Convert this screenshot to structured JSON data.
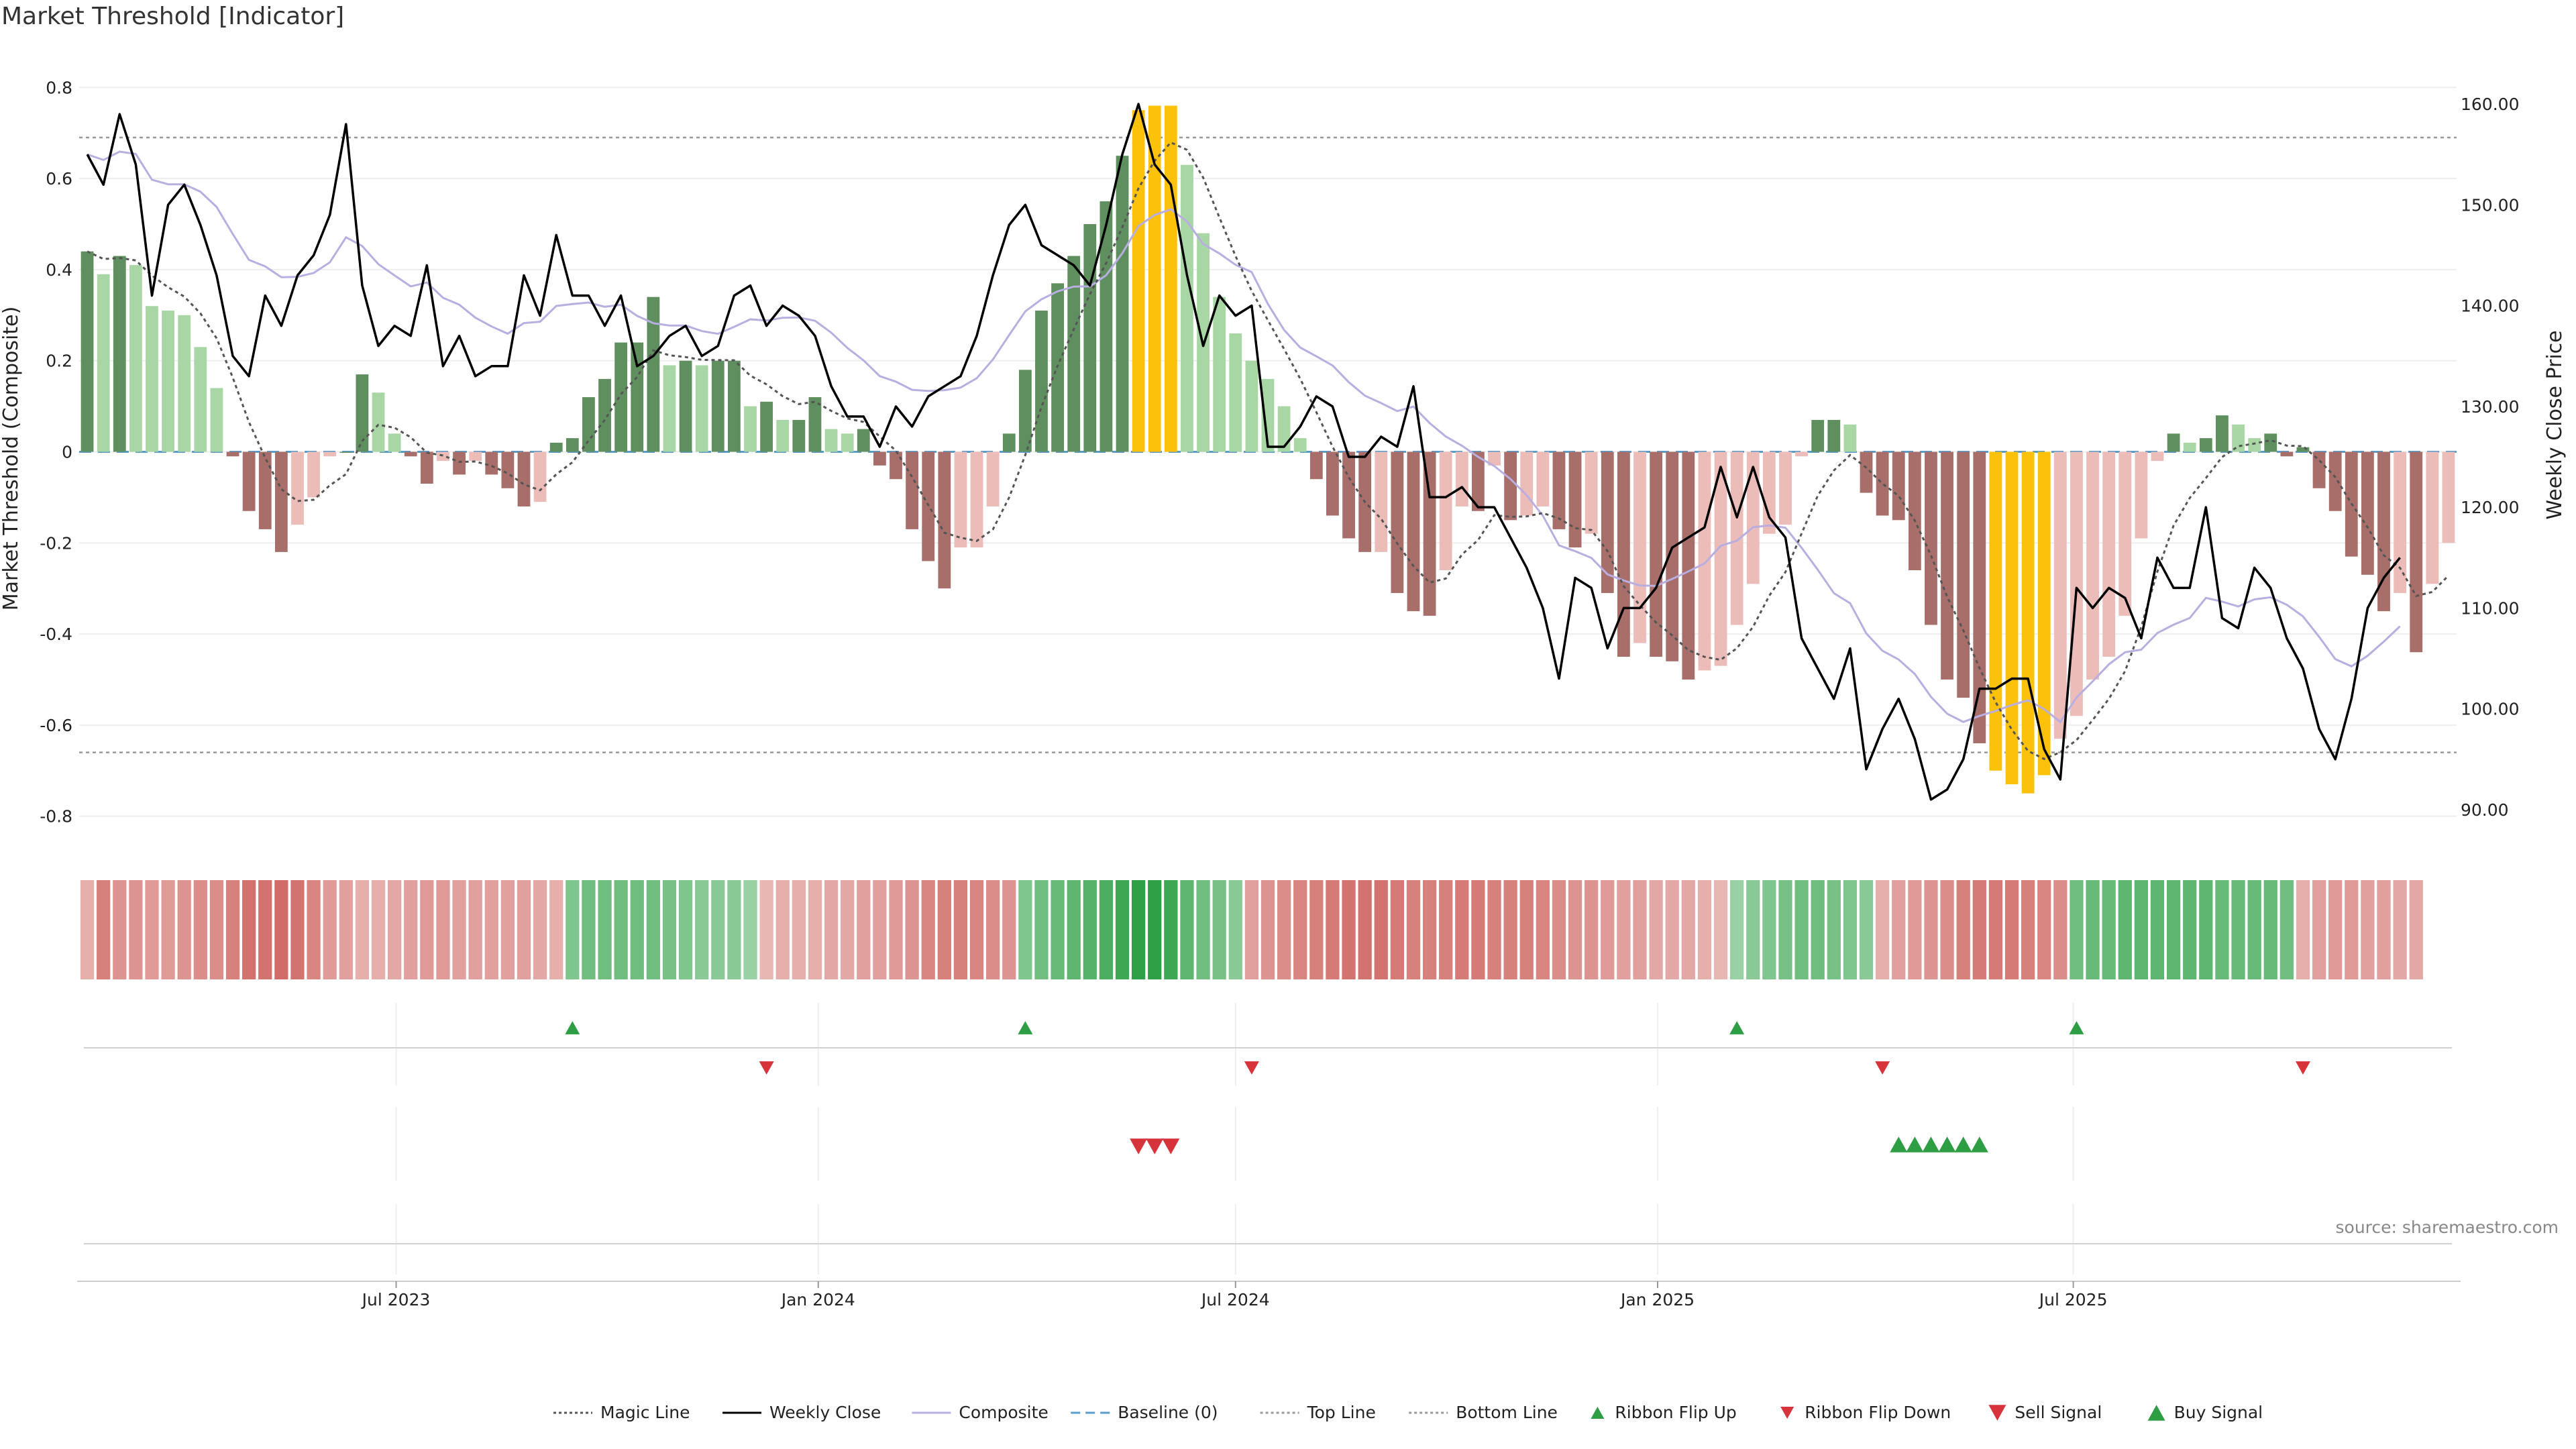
{
  "title": "Market Threshold [Indicator]",
  "source": "source: sharemaestro.com",
  "colors": {
    "magic": "#555555",
    "close": "#000000",
    "composite": "#b9aee0",
    "baseline": "#5b9bc8",
    "top_line": "#999999",
    "bottom_line": "#999999",
    "bar_strong_pos": "#5f8f5f",
    "bar_weak_pos": "#a8d6a4",
    "bar_strong_neg": "#a86e6a",
    "bar_weak_neg": "#ebbcb8",
    "bar_extreme": "#fcc10a",
    "flip_up": "#2e9e44",
    "flip_down": "#d6333a",
    "sell": "#d6333a",
    "buy": "#2e9e44"
  },
  "chart_data": {
    "type": "bar",
    "left_axis": {
      "label": "Market Threshold (Composite)",
      "range": [
        -0.83,
        0.83
      ],
      "ticks": [
        "0.8",
        "0.6",
        "0.4",
        "0.2",
        "0",
        "-0.2",
        "-0.4",
        "-0.6",
        "-0.8"
      ]
    },
    "right_axis": {
      "label": "Weekly Close Price",
      "range": [
        88,
        163
      ],
      "ticks": [
        "160.00",
        "150.00",
        "140.00",
        "130.00",
        "120.00",
        "110.00",
        "100.00",
        "90.00"
      ]
    },
    "x_labels": [
      "Jul 2023",
      "Jan 2024",
      "Jul 2024",
      "Jan 2025",
      "Jul 2025"
    ],
    "x_label_weeks": [
      19.6,
      45.7,
      71.5,
      97.6,
      123.3
    ],
    "top_line": 0.69,
    "bottom_line": -0.66,
    "composite": [
      0.44,
      0.39,
      0.43,
      0.41,
      0.32,
      0.31,
      0.3,
      0.23,
      0.14,
      -0.01,
      -0.13,
      -0.17,
      -0.22,
      -0.16,
      -0.1,
      -0.01,
      0.0,
      0.17,
      0.13,
      0.04,
      -0.01,
      -0.07,
      -0.02,
      -0.05,
      -0.02,
      -0.05,
      -0.08,
      -0.12,
      -0.11,
      0.02,
      0.03,
      0.12,
      0.16,
      0.24,
      0.24,
      0.34,
      0.19,
      0.2,
      0.19,
      0.2,
      0.2,
      0.1,
      0.11,
      0.07,
      0.07,
      0.12,
      0.05,
      0.04,
      0.05,
      -0.03,
      -0.06,
      -0.17,
      -0.24,
      -0.3,
      -0.21,
      -0.21,
      -0.12,
      0.04,
      0.18,
      0.31,
      0.37,
      0.43,
      0.5,
      0.55,
      0.65,
      0.75,
      0.76,
      0.76,
      0.63,
      0.48,
      0.34,
      0.26,
      0.2,
      0.16,
      0.1,
      0.03,
      -0.06,
      -0.14,
      -0.19,
      -0.22,
      -0.22,
      -0.31,
      -0.35,
      -0.36,
      -0.26,
      -0.12,
      -0.13,
      -0.03,
      -0.15,
      -0.14,
      -0.12,
      -0.17,
      -0.21,
      -0.18,
      -0.31,
      -0.45,
      -0.42,
      -0.45,
      -0.46,
      -0.5,
      -0.48,
      -0.47,
      -0.38,
      -0.29,
      -0.18,
      -0.16,
      -0.01,
      0.07,
      0.07,
      0.06,
      -0.09,
      -0.14,
      -0.15,
      -0.26,
      -0.38,
      -0.5,
      -0.54,
      -0.64,
      -0.7,
      -0.73,
      -0.75,
      -0.71,
      -0.63,
      -0.58,
      -0.5,
      -0.45,
      -0.36,
      -0.19,
      -0.02,
      0.04,
      0.02,
      0.03,
      0.08,
      0.06,
      0.03,
      0.04,
      -0.01,
      0.01,
      -0.08,
      -0.13,
      -0.23,
      -0.27,
      -0.35,
      -0.31,
      -0.44,
      -0.29,
      -0.2
    ],
    "weekly_close": [
      155,
      152,
      159,
      154,
      141,
      150,
      152,
      148,
      143,
      135,
      133,
      141,
      138,
      143,
      145,
      149,
      158,
      142,
      136,
      138,
      137,
      144,
      134,
      137,
      133,
      134,
      134,
      143,
      139,
      147,
      141,
      141,
      138,
      141,
      134,
      135,
      137,
      138,
      135,
      136,
      141,
      142,
      138,
      140,
      139,
      137,
      132,
      129,
      129,
      126,
      130,
      128,
      131,
      132,
      133,
      137,
      143,
      148,
      150,
      146,
      145,
      144,
      142,
      148,
      155,
      160,
      154,
      152,
      143,
      136,
      141,
      139,
      140,
      126,
      126,
      128,
      131,
      130,
      125,
      125,
      127,
      126,
      132,
      121,
      121,
      122,
      120,
      120,
      117,
      114,
      110,
      103,
      113,
      112,
      106,
      110,
      110,
      112,
      116,
      117,
      118,
      124,
      119,
      124,
      119,
      117,
      107,
      104,
      101,
      106,
      94,
      98,
      101,
      97,
      91,
      92,
      95,
      102,
      102,
      103,
      103,
      96,
      93,
      112,
      110,
      112,
      111,
      107,
      115,
      112,
      112,
      120,
      109,
      108,
      114,
      112,
      107,
      104,
      98,
      95,
      101,
      110,
      113,
      115
    ]
  },
  "ribbon": [
    {
      "sign": "neg",
      "level": 0.35
    },
    {
      "sign": "neg",
      "level": 0.7
    },
    {
      "sign": "neg",
      "level": 0.55
    },
    {
      "sign": "neg",
      "level": 0.55
    },
    {
      "sign": "neg",
      "level": 0.5
    },
    {
      "sign": "neg",
      "level": 0.5
    },
    {
      "sign": "neg",
      "level": 0.55
    },
    {
      "sign": "neg",
      "level": 0.6
    },
    {
      "sign": "neg",
      "level": 0.6
    },
    {
      "sign": "neg",
      "level": 0.7
    },
    {
      "sign": "neg",
      "level": 0.8
    },
    {
      "sign": "neg",
      "level": 0.8
    },
    {
      "sign": "neg",
      "level": 0.85
    },
    {
      "sign": "neg",
      "level": 0.8
    },
    {
      "sign": "neg",
      "level": 0.65
    },
    {
      "sign": "neg",
      "level": 0.5
    },
    {
      "sign": "neg",
      "level": 0.45
    },
    {
      "sign": "neg",
      "level": 0.35
    },
    {
      "sign": "neg",
      "level": 0.35
    },
    {
      "sign": "neg",
      "level": 0.4
    },
    {
      "sign": "neg",
      "level": 0.45
    },
    {
      "sign": "neg",
      "level": 0.5
    },
    {
      "sign": "neg",
      "level": 0.5
    },
    {
      "sign": "neg",
      "level": 0.45
    },
    {
      "sign": "neg",
      "level": 0.45
    },
    {
      "sign": "neg",
      "level": 0.45
    },
    {
      "sign": "neg",
      "level": 0.45
    },
    {
      "sign": "neg",
      "level": 0.45
    },
    {
      "sign": "neg",
      "level": 0.4
    },
    {
      "sign": "neg",
      "level": 0.35
    },
    {
      "sign": "pos",
      "level": 0.45
    },
    {
      "sign": "pos",
      "level": 0.55
    },
    {
      "sign": "pos",
      "level": 0.55
    },
    {
      "sign": "pos",
      "level": 0.55
    },
    {
      "sign": "pos",
      "level": 0.55
    },
    {
      "sign": "pos",
      "level": 0.55
    },
    {
      "sign": "pos",
      "level": 0.5
    },
    {
      "sign": "pos",
      "level": 0.45
    },
    {
      "sign": "pos",
      "level": 0.4
    },
    {
      "sign": "pos",
      "level": 0.4
    },
    {
      "sign": "pos",
      "level": 0.4
    },
    {
      "sign": "pos",
      "level": 0.3
    },
    {
      "sign": "neg",
      "level": 0.3
    },
    {
      "sign": "neg",
      "level": 0.35
    },
    {
      "sign": "neg",
      "level": 0.35
    },
    {
      "sign": "neg",
      "level": 0.35
    },
    {
      "sign": "neg",
      "level": 0.4
    },
    {
      "sign": "neg",
      "level": 0.4
    },
    {
      "sign": "neg",
      "level": 0.45
    },
    {
      "sign": "neg",
      "level": 0.45
    },
    {
      "sign": "neg",
      "level": 0.5
    },
    {
      "sign": "neg",
      "level": 0.55
    },
    {
      "sign": "neg",
      "level": 0.65
    },
    {
      "sign": "neg",
      "level": 0.7
    },
    {
      "sign": "neg",
      "level": 0.7
    },
    {
      "sign": "neg",
      "level": 0.65
    },
    {
      "sign": "neg",
      "level": 0.6
    },
    {
      "sign": "neg",
      "level": 0.55
    },
    {
      "sign": "pos",
      "level": 0.45
    },
    {
      "sign": "pos",
      "level": 0.55
    },
    {
      "sign": "pos",
      "level": 0.6
    },
    {
      "sign": "pos",
      "level": 0.65
    },
    {
      "sign": "pos",
      "level": 0.7
    },
    {
      "sign": "pos",
      "level": 0.75
    },
    {
      "sign": "pos",
      "level": 0.85
    },
    {
      "sign": "pos",
      "level": 0.95
    },
    {
      "sign": "pos",
      "level": 0.95
    },
    {
      "sign": "pos",
      "level": 0.85
    },
    {
      "sign": "pos",
      "level": 0.65
    },
    {
      "sign": "pos",
      "level": 0.55
    },
    {
      "sign": "pos",
      "level": 0.5
    },
    {
      "sign": "pos",
      "level": 0.4
    },
    {
      "sign": "neg",
      "level": 0.45
    },
    {
      "sign": "neg",
      "level": 0.55
    },
    {
      "sign": "neg",
      "level": 0.6
    },
    {
      "sign": "neg",
      "level": 0.65
    },
    {
      "sign": "neg",
      "level": 0.7
    },
    {
      "sign": "neg",
      "level": 0.75
    },
    {
      "sign": "neg",
      "level": 0.8
    },
    {
      "sign": "neg",
      "level": 0.8
    },
    {
      "sign": "neg",
      "level": 0.8
    },
    {
      "sign": "neg",
      "level": 0.75
    },
    {
      "sign": "neg",
      "level": 0.7
    },
    {
      "sign": "neg",
      "level": 0.7
    },
    {
      "sign": "neg",
      "level": 0.7
    },
    {
      "sign": "neg",
      "level": 0.75
    },
    {
      "sign": "neg",
      "level": 0.75
    },
    {
      "sign": "neg",
      "level": 0.7
    },
    {
      "sign": "neg",
      "level": 0.7
    },
    {
      "sign": "neg",
      "level": 0.7
    },
    {
      "sign": "neg",
      "level": 0.65
    },
    {
      "sign": "neg",
      "level": 0.6
    },
    {
      "sign": "neg",
      "level": 0.55
    },
    {
      "sign": "neg",
      "level": 0.55
    },
    {
      "sign": "neg",
      "level": 0.5
    },
    {
      "sign": "neg",
      "level": 0.45
    },
    {
      "sign": "neg",
      "level": 0.45
    },
    {
      "sign": "neg",
      "level": 0.4
    },
    {
      "sign": "neg",
      "level": 0.4
    },
    {
      "sign": "neg",
      "level": 0.4
    },
    {
      "sign": "neg",
      "level": 0.35
    },
    {
      "sign": "neg",
      "level": 0.3
    },
    {
      "sign": "pos",
      "level": 0.3
    },
    {
      "sign": "pos",
      "level": 0.4
    },
    {
      "sign": "pos",
      "level": 0.45
    },
    {
      "sign": "pos",
      "level": 0.5
    },
    {
      "sign": "pos",
      "level": 0.55
    },
    {
      "sign": "pos",
      "level": 0.55
    },
    {
      "sign": "pos",
      "level": 0.5
    },
    {
      "sign": "pos",
      "level": 0.45
    },
    {
      "sign": "pos",
      "level": 0.4
    },
    {
      "sign": "neg",
      "level": 0.35
    },
    {
      "sign": "neg",
      "level": 0.45
    },
    {
      "sign": "neg",
      "level": 0.5
    },
    {
      "sign": "neg",
      "level": 0.55
    },
    {
      "sign": "neg",
      "level": 0.6
    },
    {
      "sign": "neg",
      "level": 0.7
    },
    {
      "sign": "neg",
      "level": 0.75
    },
    {
      "sign": "neg",
      "level": 0.75
    },
    {
      "sign": "neg",
      "level": 0.75
    },
    {
      "sign": "neg",
      "level": 0.7
    },
    {
      "sign": "neg",
      "level": 0.65
    },
    {
      "sign": "neg",
      "level": 0.6
    },
    {
      "sign": "pos",
      "level": 0.55
    },
    {
      "sign": "pos",
      "level": 0.6
    },
    {
      "sign": "pos",
      "level": 0.6
    },
    {
      "sign": "pos",
      "level": 0.65
    },
    {
      "sign": "pos",
      "level": 0.65
    },
    {
      "sign": "pos",
      "level": 0.65
    },
    {
      "sign": "pos",
      "level": 0.65
    },
    {
      "sign": "pos",
      "level": 0.65
    },
    {
      "sign": "pos",
      "level": 0.65
    },
    {
      "sign": "pos",
      "level": 0.6
    },
    {
      "sign": "pos",
      "level": 0.6
    },
    {
      "sign": "pos",
      "level": 0.6
    },
    {
      "sign": "pos",
      "level": 0.6
    },
    {
      "sign": "pos",
      "level": 0.55
    },
    {
      "sign": "neg",
      "level": 0.35
    },
    {
      "sign": "neg",
      "level": 0.45
    },
    {
      "sign": "neg",
      "level": 0.5
    },
    {
      "sign": "neg",
      "level": 0.5
    },
    {
      "sign": "neg",
      "level": 0.45
    },
    {
      "sign": "neg",
      "level": 0.45
    },
    {
      "sign": "neg",
      "level": 0.4
    },
    {
      "sign": "neg",
      "level": 0.4
    }
  ],
  "ribbon_flip_up_weeks": [
    30,
    58,
    102,
    123
  ],
  "ribbon_flip_down_weeks": [
    42,
    72,
    111,
    137
  ],
  "sell_signal_weeks": [
    65,
    66,
    67
  ],
  "buy_signal_weeks": [
    112,
    113,
    114,
    115,
    116,
    117
  ],
  "legend": [
    {
      "label": "Magic Line",
      "kind": "dotted-line",
      "color": "#555555"
    },
    {
      "label": "Weekly Close",
      "kind": "solid-line",
      "color": "#000000"
    },
    {
      "label": "Composite",
      "kind": "solid-line",
      "color": "#b9aee0"
    },
    {
      "label": "Baseline (0)",
      "kind": "dashed-line",
      "color": "#5b9bc8"
    },
    {
      "label": "Top Line",
      "kind": "dotted-line",
      "color": "#999999"
    },
    {
      "label": "Bottom Line",
      "kind": "dotted-line",
      "color": "#999999"
    },
    {
      "label": "Ribbon Flip Up",
      "kind": "up-triangle",
      "color": "#2e9e44"
    },
    {
      "label": "Ribbon Flip Down",
      "kind": "down-triangle",
      "color": "#d6333a"
    },
    {
      "label": "Sell Signal",
      "kind": "big-down-triangle",
      "color": "#d6333a"
    },
    {
      "label": "Buy Signal",
      "kind": "big-up-triangle",
      "color": "#2e9e44"
    }
  ]
}
